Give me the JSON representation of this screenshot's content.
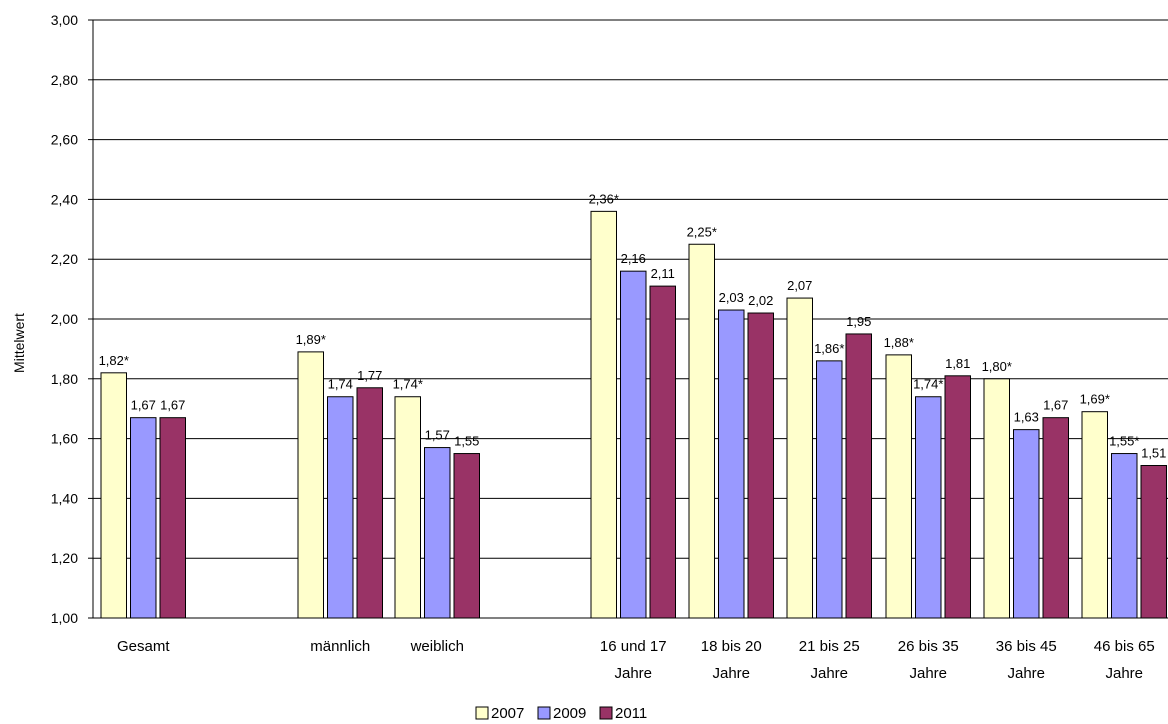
{
  "chart_data": {
    "type": "bar",
    "title": "",
    "xlabel": "",
    "ylabel": "Mittelwert",
    "ylim": [
      1.0,
      3.0
    ],
    "yticks": [
      "1,00",
      "1,20",
      "1,40",
      "1,60",
      "1,80",
      "2,00",
      "2,20",
      "2,40",
      "2,60",
      "2,80",
      "3,00"
    ],
    "grid": true,
    "legend_position": "bottom",
    "groups": [
      {
        "label_lines": [
          "Gesamt"
        ],
        "values": [
          1.82,
          1.67,
          1.67
        ],
        "labels": [
          "1,82*",
          "1,67",
          "1,67"
        ]
      },
      {
        "label_lines": [
          "männlich"
        ],
        "values": [
          1.89,
          1.74,
          1.77
        ],
        "labels": [
          "1,89*",
          "1,74",
          "1,77"
        ]
      },
      {
        "label_lines": [
          "weiblich"
        ],
        "values": [
          1.74,
          1.57,
          1.55
        ],
        "labels": [
          "1,74*",
          "1,57",
          "1,55"
        ]
      },
      {
        "label_lines": [
          "16 und 17",
          "Jahre"
        ],
        "values": [
          2.36,
          2.16,
          2.11
        ],
        "labels": [
          "2,36*",
          "2,16",
          "2,11"
        ]
      },
      {
        "label_lines": [
          "18 bis 20",
          "Jahre"
        ],
        "values": [
          2.25,
          2.03,
          2.02
        ],
        "labels": [
          "2,25*",
          "2,03",
          "2,02"
        ]
      },
      {
        "label_lines": [
          "21 bis 25",
          "Jahre"
        ],
        "values": [
          2.07,
          1.86,
          1.95
        ],
        "labels": [
          "2,07",
          "1,86*",
          "1,95"
        ]
      },
      {
        "label_lines": [
          "26 bis 35",
          "Jahre"
        ],
        "values": [
          1.88,
          1.74,
          1.81
        ],
        "labels": [
          "1,88*",
          "1,74*",
          "1,81"
        ]
      },
      {
        "label_lines": [
          "36 bis 45",
          "Jahre"
        ],
        "values": [
          1.8,
          1.63,
          1.67
        ],
        "labels": [
          "1,80*",
          "1,63",
          "1,67"
        ]
      },
      {
        "label_lines": [
          "46 bis 65",
          "Jahre"
        ],
        "values": [
          1.69,
          1.55,
          1.51
        ],
        "labels": [
          "1,69*",
          "1,55*",
          "1,51"
        ]
      }
    ],
    "series": [
      {
        "name": "2007",
        "color": "#FFFFCC"
      },
      {
        "name": "2009",
        "color": "#9999FF"
      },
      {
        "name": "2011",
        "color": "#993366"
      }
    ]
  }
}
